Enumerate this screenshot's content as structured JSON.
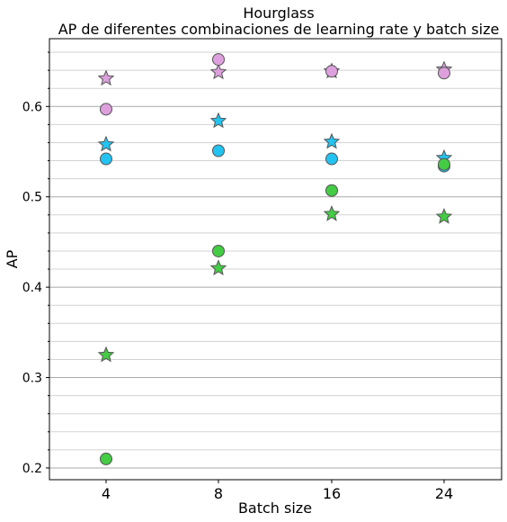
{
  "chart_data": {
    "type": "scatter",
    "title": "Hourglass",
    "subtitle": "AP de diferentes combinaciones de learning rate y batch size",
    "xlabel": "Batch size",
    "ylabel": "AP",
    "categories": [
      "4",
      "8",
      "16",
      "24"
    ],
    "ylim": [
      0.187,
      0.675
    ],
    "yticks": [
      0.2,
      0.3,
      0.4,
      0.5,
      0.6
    ],
    "yticks_minor": [
      0.22,
      0.24,
      0.26,
      0.28,
      0.32,
      0.34,
      0.36,
      0.38,
      0.42,
      0.44,
      0.46,
      0.48,
      0.52,
      0.54,
      0.56,
      0.58,
      0.62,
      0.64,
      0.66
    ],
    "ytick_labels": [
      "0.2",
      "0.3",
      "0.4",
      "0.5",
      "0.6"
    ],
    "grid": true,
    "grid_axis": "y",
    "series": [
      {
        "color": "#dda0dd",
        "marker": "circle",
        "values": [
          0.597,
          0.652,
          0.639,
          0.637
        ]
      },
      {
        "color": "#dda0dd",
        "marker": "star",
        "values": [
          0.631,
          0.638,
          0.639,
          0.641
        ]
      },
      {
        "color": "#22c3f0",
        "marker": "circle",
        "values": [
          0.542,
          0.551,
          0.542,
          0.534
        ]
      },
      {
        "color": "#22c3f0",
        "marker": "star",
        "values": [
          0.558,
          0.584,
          0.561,
          0.543
        ]
      },
      {
        "color": "#44cc44",
        "marker": "circle",
        "values": [
          0.21,
          0.44,
          0.507,
          0.536
        ]
      },
      {
        "color": "#44cc44",
        "marker": "star",
        "values": [
          0.325,
          0.421,
          0.481,
          0.478
        ]
      }
    ]
  }
}
